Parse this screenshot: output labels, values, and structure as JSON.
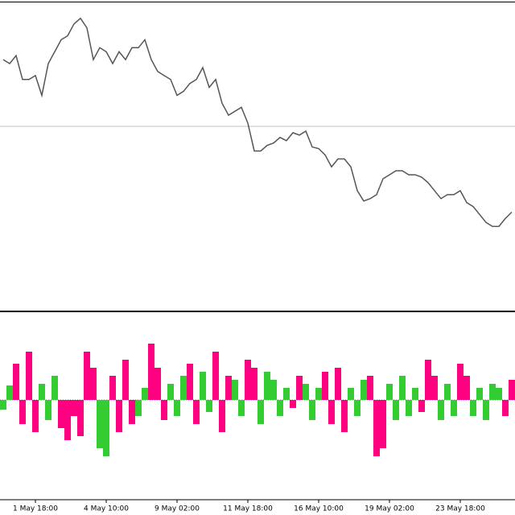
{
  "chart_data": [
    {
      "type": "line",
      "color": "#555555",
      "ylim": [
        14,
        400
      ],
      "values": [
        330,
        325,
        335,
        305,
        305,
        310,
        285,
        325,
        340,
        355,
        360,
        375,
        382,
        370,
        330,
        345,
        340,
        325,
        340,
        330,
        345,
        345,
        355,
        330,
        315,
        310,
        305,
        285,
        290,
        300,
        305,
        320,
        295,
        305,
        275,
        260,
        265,
        270,
        250,
        215,
        215,
        222,
        225,
        232,
        228,
        238,
        235,
        240,
        220,
        218,
        210,
        195,
        205,
        205,
        195,
        165,
        152,
        155,
        160,
        180,
        185,
        190,
        190,
        185,
        185,
        182,
        175,
        165,
        155,
        160,
        160,
        165,
        150,
        145,
        135,
        125,
        120,
        120,
        130,
        138
      ]
    },
    {
      "type": "bar",
      "ylim": [
        -123,
        107
      ],
      "categories": [
        null,
        null,
        null,
        null,
        null,
        "1 May 18:00",
        null,
        null,
        null,
        null,
        null,
        null,
        null,
        null,
        null,
        null,
        "4 May 10:00",
        null,
        null,
        null,
        null,
        null,
        null,
        null,
        null,
        null,
        null,
        "9 May 02:00",
        null,
        null,
        null,
        null,
        null,
        null,
        null,
        null,
        null,
        null,
        "11 May 18:00",
        null,
        null,
        null,
        null,
        null,
        null,
        null,
        null,
        null,
        null,
        "16 May 10:00",
        null,
        null,
        null,
        null,
        null,
        null,
        null,
        null,
        null,
        null,
        "19 May 02:00",
        null,
        null,
        null,
        null,
        null,
        null,
        null,
        null,
        null,
        null,
        "23 May 18:00",
        null,
        null,
        null,
        null,
        null,
        null,
        null,
        null
      ],
      "values": [
        -12,
        18,
        45,
        -30,
        60,
        -40,
        20,
        -25,
        30,
        -35,
        -50,
        -20,
        -45,
        60,
        40,
        -60,
        -70,
        30,
        -40,
        50,
        -30,
        -20,
        15,
        70,
        40,
        -25,
        20,
        -20,
        30,
        45,
        -30,
        35,
        -15,
        60,
        -40,
        30,
        25,
        -20,
        50,
        40,
        -30,
        35,
        25,
        -20,
        15,
        -10,
        30,
        20,
        -25,
        15,
        35,
        -30,
        40,
        -40,
        15,
        -20,
        25,
        30,
        -70,
        -60,
        20,
        -25,
        30,
        -20,
        15,
        -15,
        50,
        30,
        -25,
        20,
        -20,
        45,
        30,
        -20,
        15,
        -25,
        20,
        15,
        -20,
        25
      ],
      "colors": [
        "#33cc33",
        "#33cc33",
        "#ff0080",
        "#ff0080",
        "#ff0080",
        "#ff0080",
        "#33cc33",
        "#33cc33",
        "#33cc33",
        "#ff0080",
        "#ff0080",
        "#ff0080",
        "#ff0080",
        "#ff0080",
        "#ff0080",
        "#33cc33",
        "#33cc33",
        "#ff0080",
        "#ff0080",
        "#ff0080",
        "#ff0080",
        "#33cc33",
        "#33cc33",
        "#ff0080",
        "#ff0080",
        "#ff0080",
        "#33cc33",
        "#33cc33",
        "#33cc33",
        "#ff0080",
        "#ff0080",
        "#33cc33",
        "#33cc33",
        "#ff0080",
        "#ff0080",
        "#ff0080",
        "#33cc33",
        "#33cc33",
        "#ff0080",
        "#ff0080",
        "#33cc33",
        "#33cc33",
        "#33cc33",
        "#33cc33",
        "#33cc33",
        "#ff0080",
        "#ff0080",
        "#33cc33",
        "#33cc33",
        "#33cc33",
        "#ff0080",
        "#ff0080",
        "#ff0080",
        "#ff0080",
        "#33cc33",
        "#33cc33",
        "#33cc33",
        "#ff0080",
        "#ff0080",
        "#ff0080",
        "#33cc33",
        "#33cc33",
        "#33cc33",
        "#33cc33",
        "#33cc33",
        "#ff0080",
        "#ff0080",
        "#ff0080",
        "#33cc33",
        "#33cc33",
        "#33cc33",
        "#ff0080",
        "#ff0080",
        "#33cc33",
        "#33cc33",
        "#33cc33",
        "#33cc33",
        "#33cc33",
        "#ff0080",
        "#ff0080"
      ]
    }
  ]
}
